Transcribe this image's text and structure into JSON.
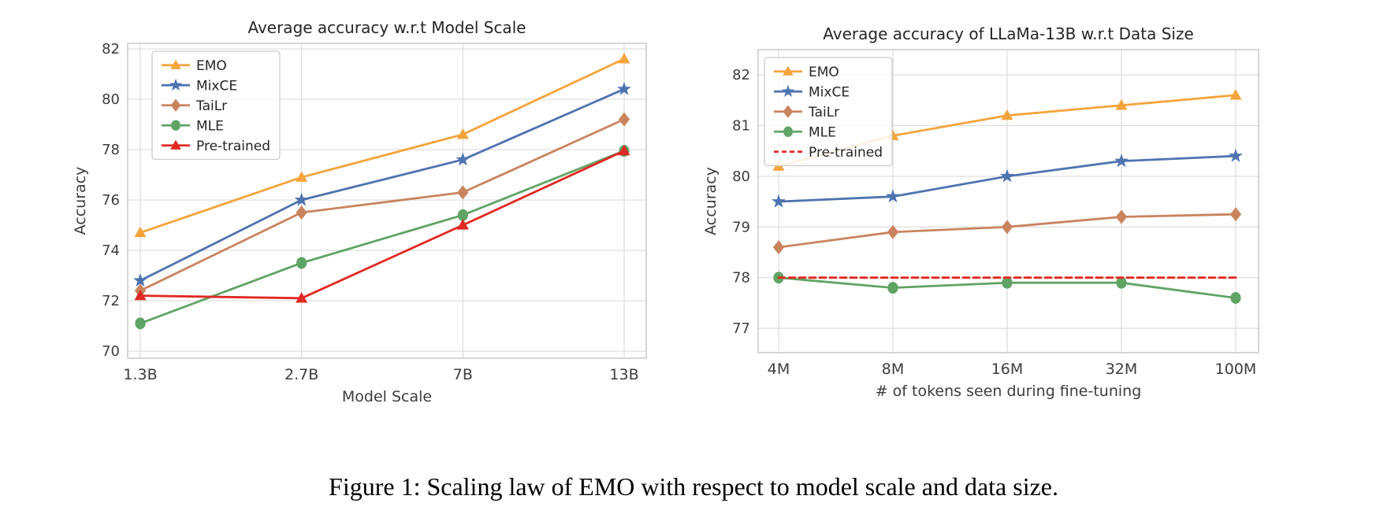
{
  "figure": {
    "caption": "Figure 1: Scaling law of EMO with respect to model scale and data size."
  },
  "colors": {
    "emo": "#F5A43C",
    "mixce": "#4E73B0",
    "tailr": "#C9845E",
    "mle": "#60A465",
    "pretrained": "#E02922",
    "grid": "#DCDCDC",
    "spine": "#C6C6C6",
    "tick_text": "#3D3D3D",
    "title_text": "#262626"
  },
  "chart_data": [
    {
      "type": "line",
      "title": "Average accuracy w.r.t Model Scale",
      "xlabel": "Model Scale",
      "ylabel": "Accuracy",
      "categories": [
        "1.3B",
        "2.7B",
        "7B",
        "13B"
      ],
      "ylim": [
        69.72,
        82.22
      ],
      "yticks": [
        70,
        72,
        74,
        76,
        78,
        80,
        82
      ],
      "grid": true,
      "legend_position": "upper left",
      "series": [
        {
          "name": "EMO",
          "color": "#F5A43C",
          "marker": "triangle",
          "dashed": false,
          "values": [
            74.7,
            76.9,
            78.6,
            81.6
          ]
        },
        {
          "name": "MixCE",
          "color": "#4E73B0",
          "marker": "star",
          "dashed": false,
          "values": [
            72.8,
            76.0,
            77.6,
            80.4
          ]
        },
        {
          "name": "TaiLr",
          "color": "#C9845E",
          "marker": "diamond",
          "dashed": false,
          "values": [
            72.4,
            75.5,
            76.3,
            79.2
          ]
        },
        {
          "name": "MLE",
          "color": "#60A465",
          "marker": "circle",
          "dashed": false,
          "values": [
            71.1,
            73.5,
            75.4,
            77.95
          ]
        },
        {
          "name": "Pre-trained",
          "color": "#E02922",
          "marker": "triangle",
          "dashed": false,
          "values": [
            72.2,
            72.1,
            75.0,
            77.95
          ]
        }
      ]
    },
    {
      "type": "line",
      "title": "Average accuracy of LLaMa-13B w.r.t Data Size",
      "xlabel": "# of tokens seen during fine-tuning",
      "ylabel": "Accuracy",
      "categories": [
        "4M",
        "8M",
        "16M",
        "32M",
        "100M"
      ],
      "ylim": [
        76.52,
        82.5
      ],
      "yticks": [
        77,
        78,
        79,
        80,
        81,
        82
      ],
      "grid": true,
      "legend_position": "upper left",
      "series": [
        {
          "name": "EMO",
          "color": "#F5A43C",
          "marker": "triangle",
          "dashed": false,
          "values": [
            80.2,
            80.8,
            81.2,
            81.4,
            81.6
          ]
        },
        {
          "name": "MixCE",
          "color": "#4E73B0",
          "marker": "star",
          "dashed": false,
          "values": [
            79.5,
            79.6,
            80.0,
            80.3,
            80.4
          ]
        },
        {
          "name": "TaiLr",
          "color": "#C9845E",
          "marker": "diamond",
          "dashed": false,
          "values": [
            78.6,
            78.9,
            79.0,
            79.2,
            79.25
          ]
        },
        {
          "name": "MLE",
          "color": "#60A465",
          "marker": "circle",
          "dashed": false,
          "values": [
            78.0,
            77.8,
            77.9,
            77.9,
            77.6
          ]
        },
        {
          "name": "Pre-trained",
          "color": "#E02922",
          "marker": "none",
          "dashed": true,
          "values": [
            78.0,
            78.0,
            78.0,
            78.0,
            78.0
          ]
        }
      ]
    }
  ]
}
